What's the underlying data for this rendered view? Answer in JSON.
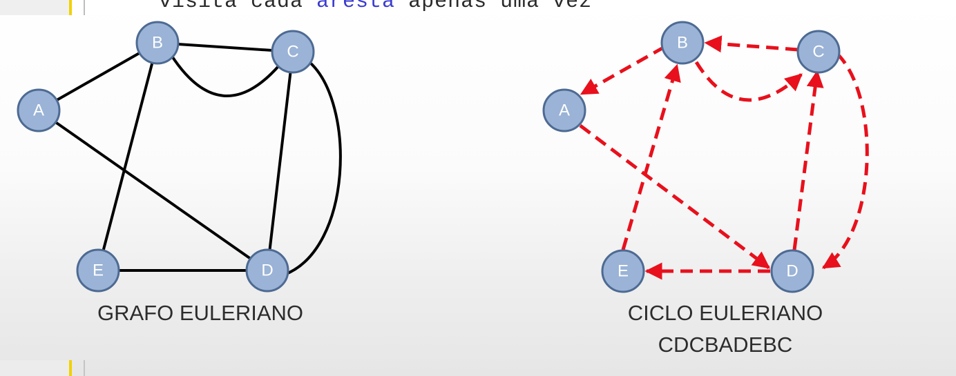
{
  "editor": {
    "code_text_before": "visita cada ",
    "code_keyword": "aresta",
    "code_text_after": " apenas uma vez"
  },
  "left_graph": {
    "nodes": [
      {
        "id": "A",
        "label": "A"
      },
      {
        "id": "B",
        "label": "B"
      },
      {
        "id": "C",
        "label": "C"
      },
      {
        "id": "D",
        "label": "D"
      },
      {
        "id": "E",
        "label": "E"
      }
    ],
    "edges": [
      [
        "A",
        "B"
      ],
      [
        "A",
        "D"
      ],
      [
        "B",
        "C"
      ],
      [
        "B",
        "C"
      ],
      [
        "B",
        "E"
      ],
      [
        "C",
        "D"
      ],
      [
        "C",
        "D"
      ],
      [
        "E",
        "D"
      ]
    ],
    "caption": "GRAFO EULERIANO"
  },
  "right_graph": {
    "nodes": [
      {
        "id": "A",
        "label": "A"
      },
      {
        "id": "B",
        "label": "B"
      },
      {
        "id": "C",
        "label": "C"
      },
      {
        "id": "D",
        "label": "D"
      },
      {
        "id": "E",
        "label": "E"
      }
    ],
    "directed_edges": [
      [
        "C",
        "D"
      ],
      [
        "D",
        "C"
      ],
      [
        "C",
        "B"
      ],
      [
        "B",
        "A"
      ],
      [
        "A",
        "D"
      ],
      [
        "D",
        "E"
      ],
      [
        "E",
        "B"
      ],
      [
        "B",
        "C"
      ]
    ],
    "caption_title": "CICLO EULERIANO",
    "caption_sequence": "CDCBADEBC",
    "edge_color": "#e8101c"
  },
  "colors": {
    "node_fill": "#9ab3d6",
    "node_stroke": "#4d6a92",
    "edge": "#000000"
  }
}
